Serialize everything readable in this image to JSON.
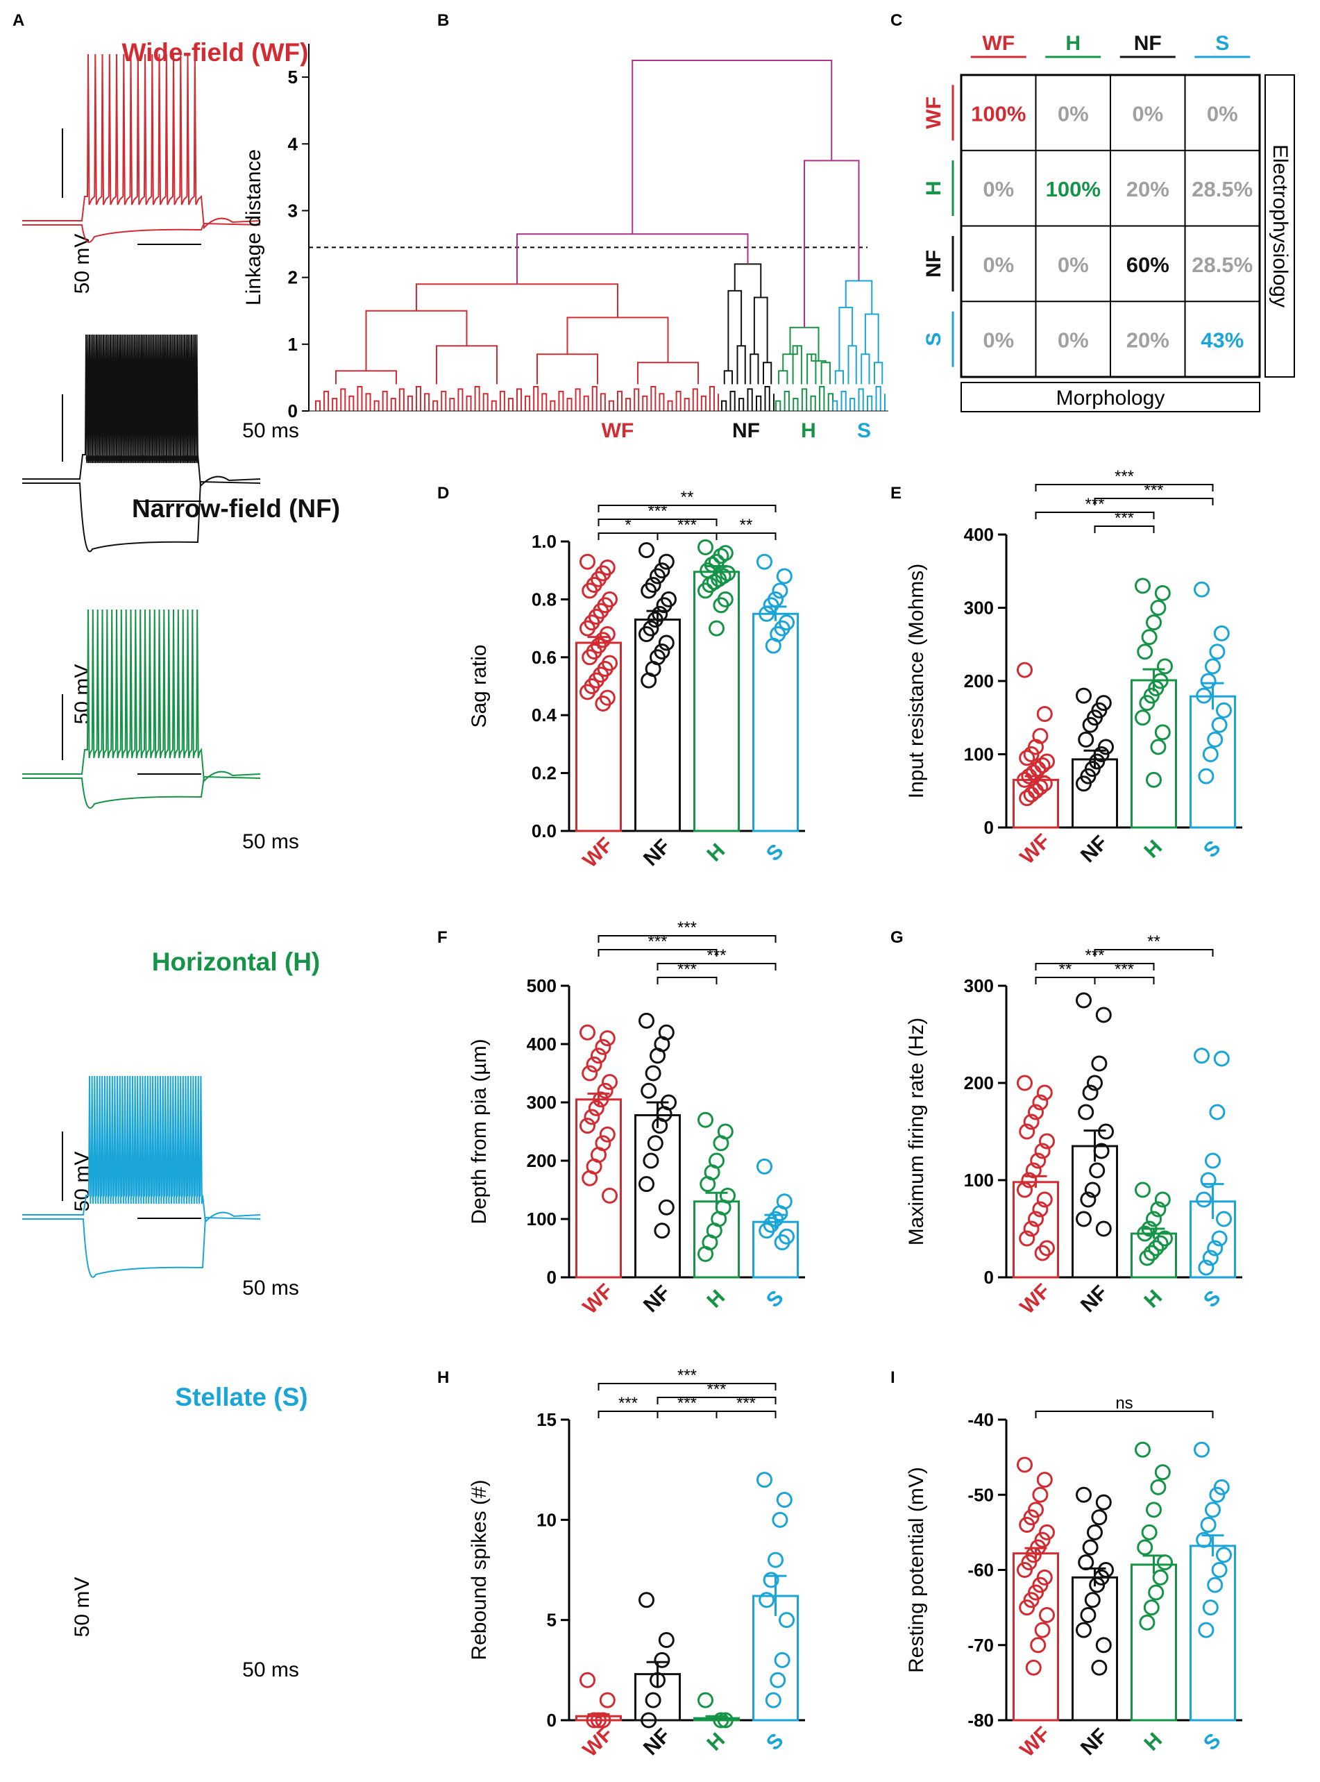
{
  "colors": {
    "WF": "#d22b32",
    "NF": "#111111",
    "H": "#159447",
    "S": "#1aa5d8",
    "magenta": "#b0308a",
    "grey": "#a0a0a0"
  },
  "panel_labels": {
    "A": "A",
    "B": "B",
    "C": "C",
    "D": "D",
    "E": "E",
    "F": "F",
    "G": "G",
    "H": "H",
    "I": "I"
  },
  "traces": [
    {
      "key": "WF",
      "title": "Wide-field (WF)",
      "scale_v": "50 mV",
      "scale_t": "50 ms"
    },
    {
      "key": "NF",
      "title": "Narrow-field (NF)",
      "scale_v": "50 mV",
      "scale_t": "50 ms"
    },
    {
      "key": "H",
      "title": "Horizontal (H)",
      "scale_v": "50 mV",
      "scale_t": "50 ms"
    },
    {
      "key": "S",
      "title": "Stellate (S)",
      "scale_v": "50 mV",
      "scale_t": "50 ms"
    }
  ],
  "chart_data": [
    {
      "id": "B",
      "type": "dendrogram",
      "ylabel": "Linkage distance",
      "ylim": [
        0,
        5.5
      ],
      "yticks": [
        "0",
        "1",
        "2",
        "3",
        "4",
        "5"
      ],
      "threshold": 2.45,
      "merges": [
        {
          "left": "WF",
          "right": "NF",
          "height": 2.65
        },
        {
          "left": "H",
          "right": "S",
          "height": 3.75
        },
        {
          "left": "WF+NF",
          "right": "H+S",
          "height": 5.25
        }
      ],
      "cluster_heights": {
        "WF": 1.9,
        "NF": 2.2,
        "H": 1.25,
        "S": 1.95
      },
      "cluster_labels": [
        "WF",
        "NF",
        "H",
        "S"
      ]
    },
    {
      "id": "C",
      "type": "table",
      "columns": [
        "WF",
        "H",
        "NF",
        "S"
      ],
      "rows": [
        "WF",
        "H",
        "NF",
        "S"
      ],
      "cells": [
        [
          "100%",
          "0%",
          "0%",
          "0%"
        ],
        [
          "0%",
          "100%",
          "20%",
          "28.5%"
        ],
        [
          "0%",
          "0%",
          "60%",
          "28.5%"
        ],
        [
          "0%",
          "0%",
          "20%",
          "43%"
        ]
      ],
      "xlabel": "Morphology",
      "ylabel": "Electrophysiology"
    },
    {
      "id": "D",
      "type": "bar",
      "ylabel": "Sag ratio",
      "ylim": [
        0,
        1.0
      ],
      "yticks": [
        "0.0",
        "0.2",
        "0.4",
        "0.6",
        "0.8",
        "1.0"
      ],
      "categories": [
        "WF",
        "NF",
        "H",
        "S"
      ],
      "values": [
        0.65,
        0.73,
        0.895,
        0.75
      ],
      "sem": [
        0.02,
        0.03,
        0.02,
        0.025
      ],
      "points": [
        [
          0.93,
          0.91,
          0.89,
          0.87,
          0.85,
          0.83,
          0.8,
          0.78,
          0.76,
          0.74,
          0.72,
          0.7,
          0.68,
          0.66,
          0.64,
          0.62,
          0.6,
          0.58,
          0.56,
          0.54,
          0.52,
          0.5,
          0.48,
          0.46,
          0.44
        ],
        [
          0.97,
          0.93,
          0.9,
          0.88,
          0.85,
          0.83,
          0.8,
          0.78,
          0.75,
          0.73,
          0.7,
          0.68,
          0.65,
          0.62,
          0.6,
          0.56,
          0.52
        ],
        [
          0.98,
          0.96,
          0.95,
          0.93,
          0.92,
          0.9,
          0.89,
          0.88,
          0.87,
          0.86,
          0.85,
          0.83,
          0.8,
          0.78,
          0.7
        ],
        [
          0.93,
          0.88,
          0.83,
          0.8,
          0.78,
          0.75,
          0.72,
          0.7,
          0.68,
          0.64
        ]
      ],
      "comparisons": [
        {
          "a": 0,
          "b": 1,
          "label": "*",
          "level": 1
        },
        {
          "a": 0,
          "b": 2,
          "label": "***",
          "level": 2
        },
        {
          "a": 1,
          "b": 2,
          "label": "***",
          "level": 1
        },
        {
          "a": 0,
          "b": 3,
          "label": "**",
          "level": 3
        },
        {
          "a": 2,
          "b": 3,
          "label": "**",
          "level": 1
        }
      ]
    },
    {
      "id": "E",
      "type": "bar",
      "ylabel": "Input resistance (Mohms)",
      "ylim": [
        0,
        400
      ],
      "yticks": [
        "0",
        "100",
        "200",
        "300",
        "400"
      ],
      "categories": [
        "WF",
        "NF",
        "H",
        "S"
      ],
      "values": [
        65,
        93,
        201,
        179
      ],
      "sem": [
        5,
        12,
        15,
        18
      ],
      "points": [
        [
          215,
          155,
          125,
          110,
          100,
          95,
          90,
          85,
          80,
          75,
          70,
          65,
          60,
          55,
          50,
          45,
          40
        ],
        [
          180,
          170,
          160,
          150,
          140,
          120,
          110,
          100,
          90,
          80,
          70,
          60
        ],
        [
          330,
          320,
          300,
          280,
          260,
          240,
          220,
          200,
          190,
          180,
          170,
          150,
          130,
          110,
          65
        ],
        [
          325,
          265,
          240,
          220,
          200,
          180,
          160,
          140,
          120,
          100,
          70
        ]
      ],
      "comparisons": [
        {
          "a": 0,
          "b": 2,
          "label": "***",
          "level": 2
        },
        {
          "a": 1,
          "b": 2,
          "label": "***",
          "level": 1
        },
        {
          "a": 0,
          "b": 3,
          "label": "***",
          "level": 4
        },
        {
          "a": 1,
          "b": 3,
          "label": "***",
          "level": 3
        }
      ]
    },
    {
      "id": "F",
      "type": "bar",
      "ylabel": "Depth from pia (µm)",
      "ylim": [
        0,
        500
      ],
      "yticks": [
        "0",
        "100",
        "200",
        "300",
        "400",
        "500"
      ],
      "categories": [
        "WF",
        "NF",
        "H",
        "S"
      ],
      "values": [
        305,
        278,
        130,
        95
      ],
      "sem": [
        10,
        22,
        15,
        12
      ],
      "points": [
        [
          420,
          410,
          395,
          380,
          365,
          350,
          335,
          320,
          305,
          290,
          275,
          260,
          245,
          230,
          210,
          190,
          170,
          140
        ],
        [
          440,
          420,
          400,
          380,
          350,
          320,
          300,
          280,
          260,
          230,
          200,
          160,
          120,
          80
        ],
        [
          270,
          250,
          230,
          200,
          180,
          160,
          140,
          120,
          100,
          80,
          60,
          40
        ],
        [
          190,
          130,
          110,
          100,
          90,
          80,
          70,
          60
        ]
      ],
      "comparisons": [
        {
          "a": 1,
          "b": 2,
          "label": "***",
          "level": 1
        },
        {
          "a": 0,
          "b": 2,
          "label": "***",
          "level": 3
        },
        {
          "a": 1,
          "b": 3,
          "label": "***",
          "level": 2
        },
        {
          "a": 0,
          "b": 3,
          "label": "***",
          "level": 4
        }
      ]
    },
    {
      "id": "G",
      "type": "bar",
      "ylabel": "Maximum firing rate (Hz)",
      "ylim": [
        0,
        300
      ],
      "yticks": [
        "0",
        "100",
        "200",
        "300"
      ],
      "categories": [
        "WF",
        "NF",
        "H",
        "S"
      ],
      "values": [
        98,
        135,
        45,
        78
      ],
      "sem": [
        6,
        16,
        5,
        18
      ],
      "points": [
        [
          200,
          190,
          180,
          170,
          160,
          150,
          140,
          130,
          120,
          110,
          100,
          90,
          80,
          70,
          60,
          50,
          40,
          30,
          25
        ],
        [
          285,
          270,
          220,
          200,
          190,
          170,
          150,
          130,
          110,
          90,
          80,
          60,
          50
        ],
        [
          90,
          80,
          70,
          60,
          50,
          45,
          40,
          35,
          30,
          25,
          20
        ],
        [
          228,
          225,
          170,
          120,
          100,
          80,
          60,
          40,
          30,
          20,
          10
        ]
      ],
      "comparisons": [
        {
          "a": 0,
          "b": 1,
          "label": "**",
          "level": 1
        },
        {
          "a": 0,
          "b": 2,
          "label": "***",
          "level": 2
        },
        {
          "a": 1,
          "b": 2,
          "label": "***",
          "level": 1
        },
        {
          "a": 1,
          "b": 3,
          "label": "**",
          "level": 3
        }
      ]
    },
    {
      "id": "H",
      "type": "bar",
      "ylabel": "Rebound spikes (#)",
      "ylim": [
        0,
        15
      ],
      "yticks": [
        "0",
        "5",
        "10",
        "15"
      ],
      "categories": [
        "WF",
        "NF",
        "H",
        "S"
      ],
      "values": [
        0.2,
        2.3,
        0.1,
        6.2
      ],
      "sem": [
        0.1,
        0.6,
        0.1,
        1.0
      ],
      "points": [
        [
          2,
          1,
          0,
          0,
          0
        ],
        [
          6,
          4,
          3,
          2,
          1,
          0
        ],
        [
          1,
          0,
          0
        ],
        [
          12,
          11,
          10,
          8,
          7,
          6,
          5,
          3,
          2,
          1
        ]
      ],
      "comparisons": [
        {
          "a": 0,
          "b": 1,
          "label": "***",
          "level": 1
        },
        {
          "a": 1,
          "b": 2,
          "label": "***",
          "level": 1
        },
        {
          "a": 2,
          "b": 3,
          "label": "***",
          "level": 1
        },
        {
          "a": 1,
          "b": 3,
          "label": "***",
          "level": 2
        },
        {
          "a": 0,
          "b": 3,
          "label": "***",
          "level": 3
        }
      ]
    },
    {
      "id": "I",
      "type": "bar",
      "ylabel": "Resting potential (mV)",
      "ylim": [
        -80,
        -40
      ],
      "baseline": -80,
      "yticks": [
        "-80",
        "-70",
        "-60",
        "-50",
        "-40"
      ],
      "categories": [
        "WF",
        "NF",
        "H",
        "S"
      ],
      "values": [
        -57.8,
        -61,
        -59.3,
        -56.8
      ],
      "sem": [
        0.7,
        1.2,
        1.2,
        1.4
      ],
      "points": [
        [
          -46,
          -48,
          -50,
          -52,
          -53,
          -54,
          -55,
          -56,
          -57,
          -58,
          -59,
          -60,
          -61,
          -62,
          -63,
          -64,
          -65,
          -66,
          -68,
          -70,
          -73
        ],
        [
          -50,
          -51,
          -53,
          -55,
          -57,
          -59,
          -60,
          -61,
          -62,
          -64,
          -66,
          -68,
          -70,
          -73
        ],
        [
          -44,
          -47,
          -49,
          -52,
          -55,
          -57,
          -59,
          -61,
          -63,
          -65,
          -67
        ],
        [
          -44,
          -49,
          -50,
          -52,
          -54,
          -56,
          -58,
          -60,
          -62,
          -65,
          -68
        ]
      ],
      "comparisons": [
        {
          "a": 0,
          "b": 3,
          "label": "ns",
          "level": 1
        }
      ]
    }
  ]
}
